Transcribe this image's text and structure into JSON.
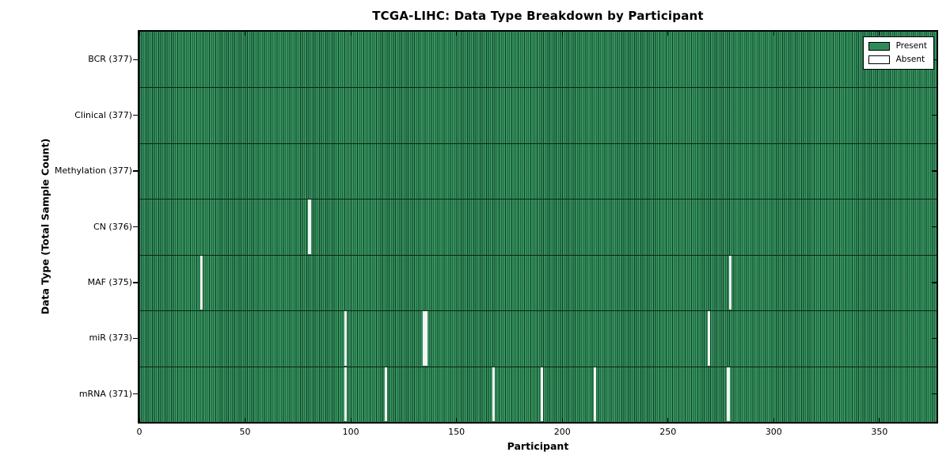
{
  "chart_data": {
    "type": "heatmap",
    "title": "TCGA-LIHC: Data Type Breakdown by Participant",
    "xlabel": "Participant",
    "ylabel": "Data Type (Total Sample Count)",
    "x_ticks": [
      0,
      50,
      100,
      150,
      200,
      250,
      300,
      350
    ],
    "x_range": [
      0,
      377
    ],
    "n_participants": 377,
    "grid": false,
    "legend_position": "upper right",
    "colors": {
      "present": "#2e8b57",
      "absent": "#ffffff",
      "cell_edge": "#123d26",
      "border": "#000000"
    },
    "legend": [
      {
        "label": "Present",
        "color": "#2e8b57"
      },
      {
        "label": "Absent",
        "color": "#ffffff"
      }
    ],
    "rows": [
      {
        "label": "BCR (377)",
        "name": "BCR",
        "present_count": 377,
        "absent_participants": []
      },
      {
        "label": "Clinical (377)",
        "name": "Clinical",
        "present_count": 377,
        "absent_participants": []
      },
      {
        "label": "Methylation (377)",
        "name": "Methylation",
        "present_count": 377,
        "absent_participants": []
      },
      {
        "label": "CN (376)",
        "name": "CN",
        "present_count": 376,
        "absent_participants": [
          80
        ]
      },
      {
        "label": "MAF (375)",
        "name": "MAF",
        "present_count": 375,
        "absent_participants": [
          29,
          279
        ]
      },
      {
        "label": "miR (373)",
        "name": "miR",
        "present_count": 373,
        "absent_participants": [
          97,
          134,
          135,
          269
        ]
      },
      {
        "label": "mRNA (371)",
        "name": "mRNA",
        "present_count": 371,
        "absent_participants": [
          97,
          116,
          167,
          190,
          215,
          278
        ]
      }
    ]
  }
}
